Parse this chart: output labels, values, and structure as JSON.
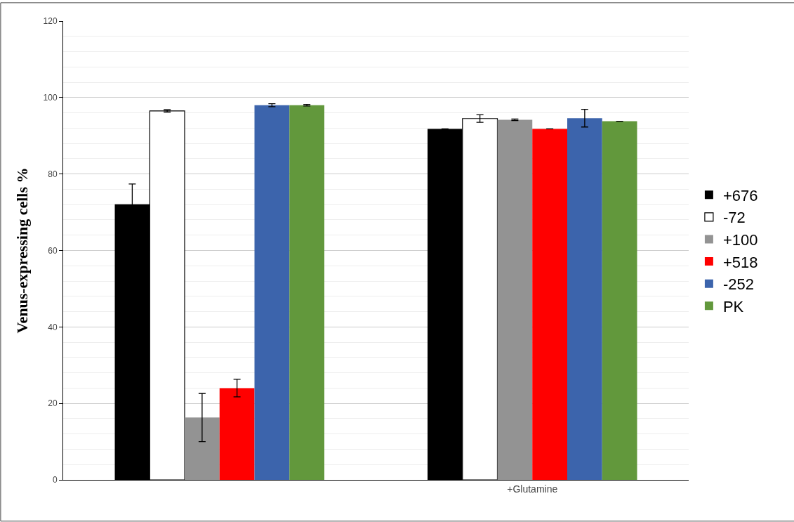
{
  "chart_data": {
    "type": "bar",
    "ylabel": "Venus-expressing cells %",
    "categories": [
      null,
      "+Glutamine"
    ],
    "series": [
      {
        "name": "+676",
        "color": "#000000",
        "values": [
          72.1,
          91.8
        ],
        "errors": [
          5.3,
          null
        ]
      },
      {
        "name": "-72",
        "color": "#ffffff",
        "values": [
          96.5,
          94.5
        ],
        "errors": [
          0.3,
          1.0
        ]
      },
      {
        "name": "+100",
        "color": "#939393",
        "values": [
          16.3,
          94.2
        ],
        "errors": [
          6.3,
          0.2
        ]
      },
      {
        "name": "+518",
        "color": "#ff0000",
        "values": [
          24.0,
          91.8
        ],
        "errors": [
          2.3,
          null
        ]
      },
      {
        "name": "-252",
        "color": "#3c64ac",
        "values": [
          98.0,
          94.6
        ],
        "errors": [
          0.4,
          2.3
        ]
      },
      {
        "name": "PK",
        "color": "#62983c",
        "values": [
          98.0,
          93.8
        ],
        "errors": [
          0.2,
          null
        ]
      }
    ],
    "ylim": [
      0,
      120
    ],
    "yticks": [
      0,
      20,
      40,
      60,
      80,
      100,
      120
    ],
    "grid": "y",
    "legend": "right"
  }
}
